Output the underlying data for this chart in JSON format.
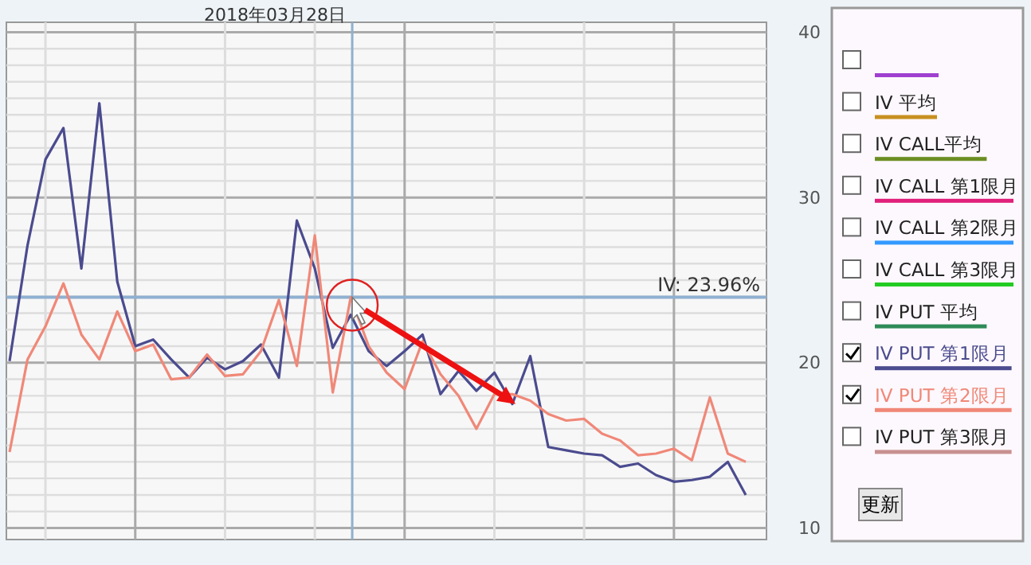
{
  "chart_data": {
    "type": "line",
    "categories": [
      null,
      null,
      null,
      null,
      null,
      null,
      null,
      null,
      null,
      null,
      null,
      null,
      null,
      null,
      null,
      null,
      null,
      null,
      null,
      null,
      null,
      null,
      null,
      null,
      null,
      null,
      null,
      null,
      null,
      null,
      null,
      null,
      null,
      null,
      null,
      null,
      null,
      null,
      null,
      null,
      null,
      null
    ],
    "series": [
      {
        "values": [
          null,
          null,
          null,
          null,
          null,
          null,
          null,
          null,
          null,
          null,
          null,
          null,
          null,
          null,
          null,
          null,
          null,
          null,
          null,
          null,
          null,
          null,
          null,
          null,
          null,
          null,
          null,
          null,
          null,
          null,
          null,
          null,
          null,
          null,
          null,
          null,
          null,
          null,
          null,
          null,
          null,
          null
        ]
      },
      {
        "name": "IV 平均",
        "values": [
          null,
          null,
          null,
          null,
          null,
          null,
          null,
          null,
          null,
          null,
          null,
          null,
          null,
          null,
          null,
          null,
          null,
          null,
          null,
          null,
          null,
          null,
          null,
          null,
          null,
          null,
          null,
          null,
          null,
          null,
          null,
          null,
          null,
          null,
          null,
          null,
          null,
          null,
          null,
          null,
          null,
          null
        ]
      },
      {
        "name": "IV CALL平均",
        "values": [
          null,
          null,
          null,
          null,
          null,
          null,
          null,
          null,
          null,
          null,
          null,
          null,
          null,
          null,
          null,
          null,
          null,
          null,
          null,
          null,
          null,
          null,
          null,
          null,
          null,
          null,
          null,
          null,
          null,
          null,
          null,
          null,
          null,
          null,
          null,
          null,
          null,
          null,
          null,
          null,
          null,
          null
        ]
      },
      {
        "name": "IV CALL 第1限月",
        "values": [
          null,
          null,
          null,
          null,
          null,
          null,
          null,
          null,
          null,
          null,
          null,
          null,
          null,
          null,
          null,
          null,
          null,
          null,
          null,
          null,
          null,
          null,
          null,
          null,
          null,
          null,
          null,
          null,
          null,
          null,
          null,
          null,
          null,
          null,
          null,
          null,
          null,
          null,
          null,
          null,
          null,
          null
        ]
      },
      {
        "name": "IV CALL 第2限月",
        "values": [
          null,
          null,
          null,
          null,
          null,
          null,
          null,
          null,
          null,
          null,
          null,
          null,
          null,
          null,
          null,
          null,
          null,
          null,
          null,
          null,
          null,
          null,
          null,
          null,
          null,
          null,
          null,
          null,
          null,
          null,
          null,
          null,
          null,
          null,
          null,
          null,
          null,
          null,
          null,
          null,
          null,
          null
        ]
      },
      {
        "name": "IV CALL 第3限月",
        "values": [
          null,
          null,
          null,
          null,
          null,
          null,
          null,
          null,
          null,
          null,
          null,
          null,
          null,
          null,
          null,
          null,
          null,
          null,
          null,
          null,
          null,
          null,
          null,
          null,
          null,
          null,
          null,
          null,
          null,
          null,
          null,
          null,
          null,
          null,
          null,
          null,
          null,
          null,
          null,
          null,
          null,
          null
        ]
      },
      {
        "name": "IV PUT 平均",
        "values": [
          null,
          null,
          null,
          null,
          null,
          null,
          null,
          null,
          null,
          null,
          null,
          null,
          null,
          null,
          null,
          null,
          null,
          null,
          null,
          null,
          null,
          null,
          null,
          null,
          null,
          null,
          null,
          null,
          null,
          null,
          null,
          null,
          null,
          null,
          null,
          null,
          null,
          null,
          null,
          null,
          null,
          null
        ]
      },
      {
        "name": "IV PUT 第1限月",
        "color": "#4b4b8f",
        "values": [
          20.1,
          27.1,
          32.3,
          34.2,
          25.7,
          35.7,
          24.9,
          21.0,
          21.4,
          20.2,
          19.1,
          20.3,
          19.6,
          20.1,
          21.1,
          19.1,
          28.6,
          25.7,
          20.9,
          22.9,
          20.7,
          19.8,
          20.7,
          21.7,
          18.1,
          19.5,
          18.3,
          19.4,
          17.5,
          20.4,
          14.9,
          14.7,
          14.5,
          14.4,
          13.7,
          13.9,
          13.2,
          12.8,
          12.9,
          13.1,
          14.0,
          12.0
        ]
      },
      {
        "name": "IV PUT 第2限月",
        "color": "#f08878",
        "values": [
          14.6,
          20.2,
          22.2,
          24.8,
          21.7,
          20.2,
          23.1,
          20.7,
          21.1,
          19.0,
          19.1,
          20.5,
          19.2,
          19.3,
          20.7,
          23.8,
          19.8,
          27.7,
          18.2,
          23.96,
          21.0,
          19.4,
          18.4,
          21.3,
          19.3,
          18.0,
          16.0,
          18.1,
          18.1,
          17.7,
          16.9,
          16.5,
          16.6,
          15.7,
          15.3,
          14.4,
          14.5,
          14.8,
          14.1,
          17.9,
          14.5,
          14.0
        ]
      },
      {
        "name": "IV PUT 第3限月",
        "values": [
          null,
          null,
          null,
          null,
          null,
          null,
          null,
          null,
          null,
          null,
          null,
          null,
          null,
          null,
          null,
          null,
          null,
          null,
          null,
          null,
          null,
          null,
          null,
          null,
          null,
          null,
          null,
          null,
          null,
          null,
          null,
          null,
          null,
          null,
          null,
          null,
          null,
          null,
          null,
          null,
          null,
          null
        ]
      }
    ],
    "ylim": [
      9.3,
      40.6
    ],
    "yticks": [
      10,
      {
        "value": 11,
        "label": null
      },
      {
        "value": 12,
        "label": null
      },
      {
        "value": 13,
        "label": null
      },
      {
        "value": 14,
        "label": null
      },
      {
        "value": 15,
        "label": null
      },
      {
        "value": 16,
        "label": null
      },
      {
        "value": 17,
        "label": null
      },
      {
        "value": 18,
        "label": null
      },
      {
        "value": 19,
        "label": null
      },
      20,
      {
        "value": 21,
        "label": null
      },
      {
        "value": 22,
        "label": null
      },
      {
        "value": 23,
        "label": null
      },
      {
        "value": 24,
        "label": null
      },
      {
        "value": 25,
        "label": null
      },
      {
        "value": 26,
        "label": null
      },
      {
        "value": 27,
        "label": null
      },
      {
        "value": 28,
        "label": null
      },
      {
        "value": 29,
        "label": null
      },
      30,
      {
        "value": 31,
        "label": null
      },
      {
        "value": 32,
        "label": null
      },
      {
        "value": 33,
        "label": null
      },
      {
        "value": 34,
        "label": null
      },
      {
        "value": 35,
        "label": null
      },
      {
        "value": 36,
        "label": null
      },
      {
        "value": 37,
        "label": null
      },
      {
        "value": 38,
        "label": null
      },
      {
        "value": 39,
        "label": null
      },
      40
    ],
    "ref_lines": [
      {
        "axis": "y",
        "value": 23.96,
        "label": "IV: 23.96%",
        "color": "#8fb0d0"
      }
    ],
    "annotations": [
      "2018年03月28日",
      "更新"
    ],
    "grid": true,
    "legend": "right",
    "marker": "none",
    "line_style": "solid"
  }
}
